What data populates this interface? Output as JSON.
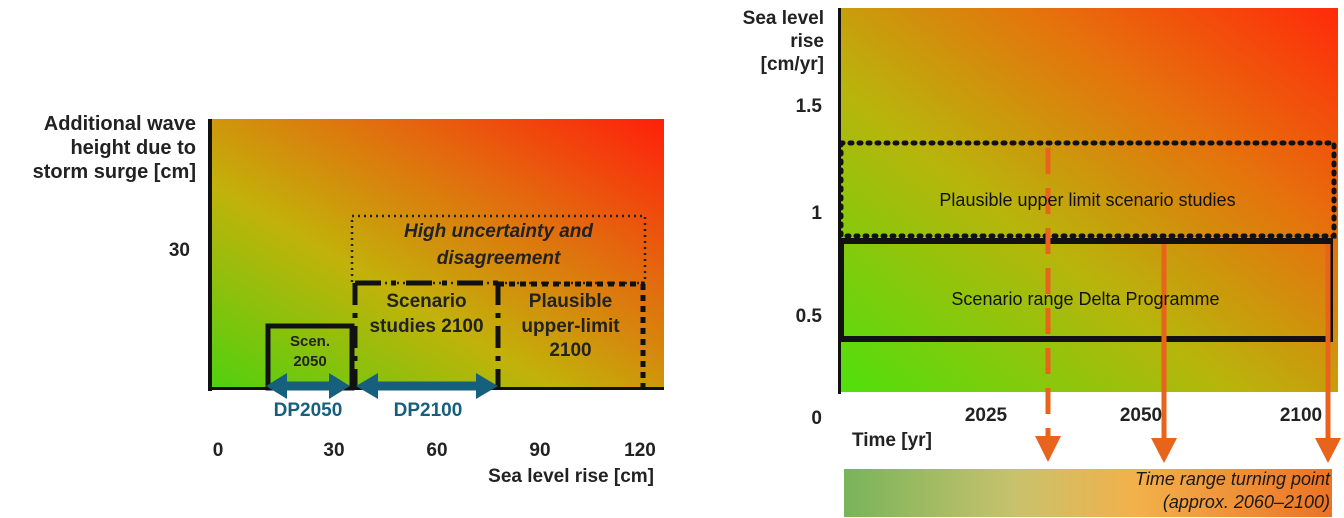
{
  "left": {
    "y_label_lines": [
      "Additional wave",
      "height due to",
      "storm surge [cm]"
    ],
    "y_tick": "30",
    "x_ticks": [
      "0",
      "30",
      "60",
      "90",
      "120"
    ],
    "x_label": "Sea level rise [cm]",
    "box_high_uncertainty_lines": [
      "High uncertainty and",
      "disagreement"
    ],
    "box_scenario_2100_lines": [
      "Scenario",
      "studies 2100"
    ],
    "box_plausible_lines": [
      "Plausible",
      "upper-limit",
      "2100"
    ],
    "box_scen_2050_lines": [
      "Scen.",
      "2050"
    ],
    "arrow_dp2050": "DP2050",
    "arrow_dp2100": "DP2100",
    "arrow_color": "#165f7d"
  },
  "right": {
    "y_label_lines": [
      "Sea level",
      "rise",
      "[cm/yr]"
    ],
    "y_ticks": [
      "1.5",
      "1",
      "0.5",
      "0"
    ],
    "x_ticks": [
      "2025",
      "2050",
      "2100"
    ],
    "x_label": "Time [yr]",
    "box_plausible": "Plausible upper limit scenario studies",
    "box_delta": "Scenario range Delta Programme",
    "turning_point_lines": [
      "Time range turning point",
      "(approx. 2060–2100)"
    ],
    "arrow_color": "#e8631c"
  }
}
